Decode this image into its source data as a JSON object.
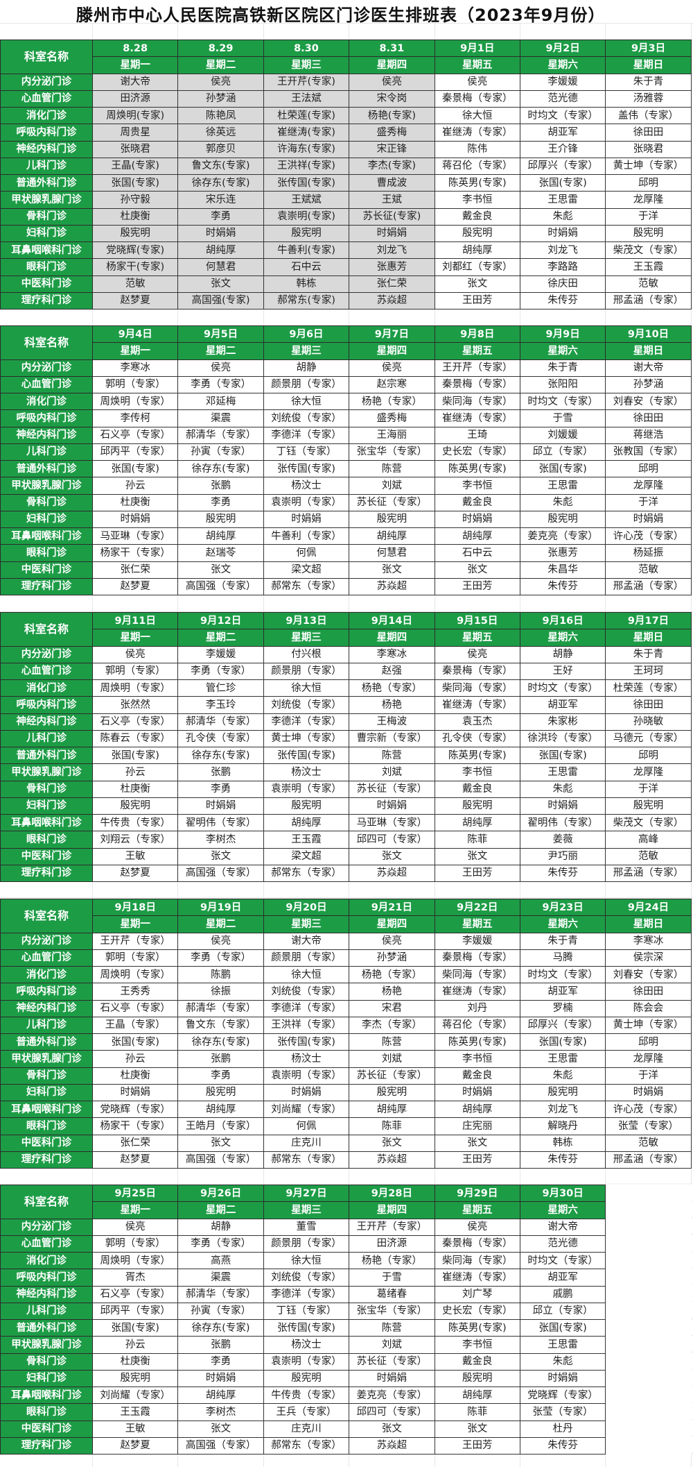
{
  "title": "滕州市中心人民医院高铁新区院区门诊医生排班表（2023年9月份）",
  "header_label": "科室名称",
  "colors": {
    "header_green": "#1d9c46",
    "shaded_cell": "#d9d9d9"
  },
  "departments": [
    "内分泌门诊",
    "心血管门诊",
    "消化门诊",
    "呼吸内科门诊",
    "神经内科门诊",
    "儿科门诊",
    "普通外科门诊",
    "甲状腺乳腺门诊",
    "骨科门诊",
    "妇科门诊",
    "耳鼻咽喉科门诊",
    "眼科门诊",
    "中医科门诊",
    "理疗科门诊"
  ],
  "weeks": [
    {
      "days": [
        {
          "date": "8.28",
          "weekday": "星期一",
          "shaded": true,
          "doctors": [
            "谢大帝",
            "田济源",
            "周焕明(专家)",
            "周贵星",
            "张晓君",
            "王晶(专家)",
            "张国(专家)",
            "孙守毅",
            "杜庚衡",
            "殷宪明",
            "党晓辉(专家)",
            "杨家干(专家)",
            "范敏",
            "赵梦夏"
          ]
        },
        {
          "date": "8.29",
          "weekday": "星期二",
          "shaded": true,
          "doctors": [
            "侯亮",
            "孙梦涵",
            "陈艳凤",
            "徐英远",
            "郭彦贝",
            "鲁文东(专家)",
            "徐存东(专家)",
            "宋乐连",
            "李勇",
            "时娟娟",
            "胡纯厚",
            "何慧君",
            "张文",
            "高国强(专家)"
          ]
        },
        {
          "date": "8.30",
          "weekday": "星期三",
          "shaded": true,
          "doctors": [
            "王开芹(专家)",
            "王法斌",
            "杜荣莲(专家)",
            "崔继涛(专家)",
            "许海东(专家)",
            "王洪祥(专家)",
            "张传国(专家)",
            "王斌斌",
            "袁崇明(专家)",
            "殷宪明",
            "牛善利(专家)",
            "石中云",
            "韩栋",
            "郝常东(专家)"
          ]
        },
        {
          "date": "8.31",
          "weekday": "星期四",
          "shaded": true,
          "doctors": [
            "侯亮",
            "宋令岗",
            "杨艳(专家)",
            "盛秀梅",
            "宋正锋",
            "李杰(专家)",
            "曹成波",
            "王斌",
            "苏长征(专家)",
            "时娟娟",
            "刘龙飞",
            "张惠芳",
            "张仁荣",
            "苏焱超"
          ]
        },
        {
          "date": "9月1日",
          "weekday": "星期五",
          "doctors": [
            "侯亮",
            "秦景梅（专家）",
            "徐大恒",
            "崔继涛（专家）",
            "陈伟",
            "蒋召伦（专家）",
            "陈英男(专家)",
            "李书恒",
            "戴金良",
            "殷宪明",
            "胡纯厚",
            "刘都红（专家）",
            "张文",
            "王田芳"
          ]
        },
        {
          "date": "9月2日",
          "weekday": "星期六",
          "doctors": [
            "李媛媛",
            "范光德",
            "时均文（专家）",
            "胡亚军",
            "王介锋",
            "邱厚兴（专家）",
            "张国(专家)",
            "王思雷",
            "朱彪",
            "时娟娟",
            "刘龙飞",
            "李路路",
            "徐庆田",
            "朱传芬"
          ]
        },
        {
          "date": "9月3日",
          "weekday": "星期日",
          "doctors": [
            "朱于青",
            "汤雅蓉",
            "盖伟（专家）",
            "徐田田",
            "张晓君",
            "黄士坤（专家）",
            "邱明",
            "龙厚隆",
            "于洋",
            "殷宪明",
            "柴茂文（专家）",
            "王玉霞",
            "范敏",
            "邢孟涵（专家）"
          ]
        }
      ]
    },
    {
      "days": [
        {
          "date": "9月4日",
          "weekday": "星期一",
          "doctors": [
            "李寒冰",
            "郭明（专家）",
            "周焕明（专家）",
            "李传柯",
            "石义亭（专家）",
            "邱丙平（专家）",
            "张国(专家)",
            "孙云",
            "杜庚衡",
            "时娟娟",
            "马亚琳（专家）",
            "杨家干（专家）",
            "张仁荣",
            "赵梦夏"
          ]
        },
        {
          "date": "9月5日",
          "weekday": "星期二",
          "doctors": [
            "侯亮",
            "李勇（专家）",
            "邓延梅",
            "渠震",
            "郝清华（专家）",
            "孙寅（专家）",
            "徐存东(专家)",
            "张鹏",
            "李勇",
            "殷宪明",
            "胡纯厚",
            "赵瑞苓",
            "张文",
            "高国强（专家）"
          ]
        },
        {
          "date": "9月6日",
          "weekday": "星期三",
          "doctors": [
            "胡静",
            "颜景朋（专家）",
            "徐大恒",
            "刘统俊（专家）",
            "李德洋（专家）",
            "丁钰（专家）",
            "张传国(专家)",
            "杨汶士",
            "袁崇明（专家）",
            "时娟娟",
            "牛善利（专家）",
            "何佩",
            "梁文超",
            "郝常东（专家）"
          ]
        },
        {
          "date": "9月7日",
          "weekday": "星期四",
          "doctors": [
            "侯亮",
            "赵宗寒",
            "杨艳（专家）",
            "盛秀梅",
            "王海丽",
            "张宝华（专家）",
            "陈营",
            "刘斌",
            "苏长征（专家）",
            "殷宪明",
            "胡纯厚",
            "何慧君",
            "张文",
            "苏焱超"
          ]
        },
        {
          "date": "9月8日",
          "weekday": "星期五",
          "doctors": [
            "王开芹（专家）",
            "秦景梅（专家）",
            "柴同海（专家）",
            "崔继涛（专家）",
            "王琦",
            "史长宏（专家）",
            "陈英男(专家)",
            "李书恒",
            "戴金良",
            "时娟娟",
            "胡纯厚",
            "石中云",
            "张文",
            "王田芳"
          ]
        },
        {
          "date": "9月9日",
          "weekday": "星期六",
          "doctors": [
            "朱于青",
            "张阳阳",
            "时均文（专家）",
            "于雪",
            "刘媛媛",
            "邱立（专家）",
            "张国(专家)",
            "王思雷",
            "朱彪",
            "殷宪明",
            "姜克亮（专家）",
            "张惠芳",
            "朱昌华",
            "朱传芬"
          ]
        },
        {
          "date": "9月10日",
          "weekday": "星期日",
          "doctors": [
            "谢大帝",
            "孙梦涵",
            "刘春安（专家）",
            "徐田田",
            "蒋继浩",
            "张教国（专家）",
            "邱明",
            "龙厚隆",
            "于洋",
            "时娟娟",
            "许心茂（专家）",
            "杨延振",
            "范敏",
            "邢孟涵（专家）"
          ]
        }
      ]
    },
    {
      "days": [
        {
          "date": "9月11日",
          "weekday": "星期一",
          "doctors": [
            "侯亮",
            "郭明（专家）",
            "周焕明（专家）",
            "张然然",
            "石义亭（专家）",
            "陈春云（专家）",
            "张国(专家)",
            "孙云",
            "杜庚衡",
            "殷宪明",
            "牛传贵（专家）",
            "刘翔云（专家）",
            "王敏",
            "赵梦夏"
          ]
        },
        {
          "date": "9月12日",
          "weekday": "星期二",
          "doctors": [
            "李媛媛",
            "李勇（专家）",
            "管仁珍",
            "李玉玲",
            "郝清华（专家）",
            "孔令侠（专家）",
            "徐存东(专家)",
            "张鹏",
            "李勇",
            "时娟娟",
            "翟明伟（专家）",
            "李树杰",
            "张文",
            "高国强（专家）"
          ]
        },
        {
          "date": "9月13日",
          "weekday": "星期三",
          "doctors": [
            "付兴根",
            "颜景朋（专家）",
            "徐大恒",
            "刘统俊（专家）",
            "李德洋（专家）",
            "黄士坤（专家）",
            "张传国(专家)",
            "杨汶士",
            "袁崇明（专家）",
            "殷宪明",
            "胡纯厚",
            "王玉霞",
            "梁文超",
            "郝常东（专家）"
          ]
        },
        {
          "date": "9月14日",
          "weekday": "星期四",
          "doctors": [
            "李寒冰",
            "赵强",
            "杨艳（专家）",
            "杨艳",
            "王梅波",
            "曹宗新（专家）",
            "陈营",
            "刘斌",
            "苏长征（专家）",
            "时娟娟",
            "马亚琳（专家）",
            "邱四可（专家）",
            "张文",
            "苏焱超"
          ]
        },
        {
          "date": "9月15日",
          "weekday": "星期五",
          "doctors": [
            "侯亮",
            "秦景梅（专家）",
            "柴同海（专家）",
            "崔继涛（专家）",
            "袁玉杰",
            "孔令侠（专家）",
            "陈英男(专家)",
            "李书恒",
            "戴金良",
            "殷宪明",
            "胡纯厚",
            "陈菲",
            "张文",
            "王田芳"
          ]
        },
        {
          "date": "9月16日",
          "weekday": "星期六",
          "doctors": [
            "胡静",
            "王好",
            "时均文（专家）",
            "胡亚军",
            "朱家彬",
            "徐洪玲（专家）",
            "张国(专家)",
            "王思雷",
            "朱彪",
            "时娟娟",
            "翟明伟（专家）",
            "姜薇",
            "尹巧丽",
            "朱传芬"
          ]
        },
        {
          "date": "9月17日",
          "weekday": "星期日",
          "doctors": [
            "朱于青",
            "王珂珂",
            "杜荣莲（专家）",
            "徐田田",
            "孙晓敏",
            "马德元（专家）",
            "邱明",
            "龙厚隆",
            "于洋",
            "殷宪明",
            "柴茂文（专家）",
            "高峰",
            "范敏",
            "邢孟涵（专家）"
          ]
        }
      ]
    },
    {
      "days": [
        {
          "date": "9月18日",
          "weekday": "星期一",
          "doctors": [
            "王开芹（专家）",
            "郭明（专家）",
            "周焕明（专家）",
            "王秀秀",
            "石义亭（专家）",
            "王晶（专家）",
            "张国(专家)",
            "孙云",
            "杜庚衡",
            "时娟娟",
            "党晓辉（专家）",
            "杨家干（专家）",
            "张仁荣",
            "赵梦夏"
          ]
        },
        {
          "date": "9月19日",
          "weekday": "星期二",
          "doctors": [
            "侯亮",
            "李勇（专家）",
            "陈鹏",
            "徐振",
            "郝清华（专家）",
            "鲁文东（专家）",
            "徐存东(专家)",
            "张鹏",
            "李勇",
            "殷宪明",
            "胡纯厚",
            "王皓月（专家）",
            "张文",
            "高国强（专家）"
          ]
        },
        {
          "date": "9月20日",
          "weekday": "星期三",
          "doctors": [
            "谢大帝",
            "颜景朋（专家）",
            "徐大恒",
            "刘统俊（专家）",
            "李德洋（专家）",
            "王洪祥（专家）",
            "张传国(专家)",
            "杨汶士",
            "袁崇明（专家）",
            "时娟娟",
            "刘尚耀（专家）",
            "何佩",
            "庄克川",
            "郝常东（专家）"
          ]
        },
        {
          "date": "9月21日",
          "weekday": "星期四",
          "doctors": [
            "侯亮",
            "孙梦涵",
            "杨艳（专家）",
            "杨艳",
            "宋君",
            "李杰（专家）",
            "陈营",
            "刘斌",
            "苏长征（专家）",
            "殷宪明",
            "胡纯厚",
            "陈菲",
            "张文",
            "苏焱超"
          ]
        },
        {
          "date": "9月22日",
          "weekday": "星期五",
          "doctors": [
            "李媛媛",
            "秦景梅（专家）",
            "柴同海（专家）",
            "崔继涛（专家）",
            "刘丹",
            "蒋召伦（专家）",
            "陈英男(专家)",
            "李书恒",
            "戴金良",
            "时娟娟",
            "胡纯厚",
            "庄宪丽",
            "张文",
            "王田芳"
          ]
        },
        {
          "date": "9月23日",
          "weekday": "星期六",
          "doctors": [
            "朱于青",
            "马腾",
            "时均文（专家）",
            "胡亚军",
            "罗楠",
            "邱厚兴（专家）",
            "张国(专家)",
            "王思雷",
            "朱彪",
            "殷宪明",
            "刘龙飞",
            "解晓丹",
            "韩栋",
            "朱传芬"
          ]
        },
        {
          "date": "9月24日",
          "weekday": "星期日",
          "doctors": [
            "李寒冰",
            "侯宗深",
            "刘春安（专家）",
            "徐田田",
            "陈会会",
            "黄士坤（专家）",
            "邱明",
            "龙厚隆",
            "于洋",
            "时娟娟",
            "许心茂（专家）",
            "张莹（专家）",
            "范敏",
            "邢孟涵（专家）"
          ]
        }
      ]
    },
    {
      "days": [
        {
          "date": "9月25日",
          "weekday": "星期一",
          "doctors": [
            "侯亮",
            "郭明（专家）",
            "周焕明（专家）",
            "胥杰",
            "石义亭（专家）",
            "邱丙平（专家）",
            "张国(专家)",
            "孙云",
            "杜庚衡",
            "殷宪明",
            "刘尚耀（专家）",
            "王玉霞",
            "王敏",
            "赵梦夏"
          ]
        },
        {
          "date": "9月26日",
          "weekday": "星期二",
          "doctors": [
            "胡静",
            "李勇（专家）",
            "高燕",
            "渠震",
            "郝清华（专家）",
            "孙寅（专家）",
            "徐存东(专家)",
            "张鹏",
            "李勇",
            "时娟娟",
            "胡纯厚",
            "李树杰",
            "张文",
            "高国强（专家）"
          ]
        },
        {
          "date": "9月27日",
          "weekday": "星期三",
          "doctors": [
            "董雪",
            "颜景朋（专家）",
            "徐大恒",
            "刘统俊（专家）",
            "李德洋（专家）",
            "丁钰（专家）",
            "张传国(专家)",
            "杨汶士",
            "袁崇明（专家）",
            "殷宪明",
            "牛传贵（专家）",
            "王兵（专家）",
            "庄克川",
            "郝常东（专家）"
          ]
        },
        {
          "date": "9月28日",
          "weekday": "星期四",
          "doctors": [
            "王开芹（专家）",
            "田济源",
            "杨艳（专家）",
            "于雪",
            "葛绪春",
            "张宝华（专家）",
            "陈营",
            "刘斌",
            "苏长征（专家）",
            "时娟娟",
            "姜克亮（专家）",
            "邱四可（专家）",
            "张文",
            "苏焱超"
          ]
        },
        {
          "date": "9月29日",
          "weekday": "星期五",
          "doctors": [
            "侯亮",
            "秦景梅（专家）",
            "柴同海（专家）",
            "崔继涛（专家）",
            "刘广琴",
            "史长宏（专家）",
            "陈英男(专家)",
            "李书恒",
            "戴金良",
            "殷宪明",
            "胡纯厚",
            "陈菲",
            "张文",
            "王田芳"
          ]
        },
        {
          "date": "9月30日",
          "weekday": "星期六",
          "doctors": [
            "谢大帝",
            "范光德",
            "时均文（专家）",
            "胡亚军",
            "戚鹏",
            "邱立（专家）",
            "张国(专家)",
            "王思雷",
            "朱彪",
            "时娟娟",
            "党晓辉（专家）",
            "张莹（专家）",
            "杜丹",
            "朱传芬"
          ]
        }
      ]
    }
  ]
}
